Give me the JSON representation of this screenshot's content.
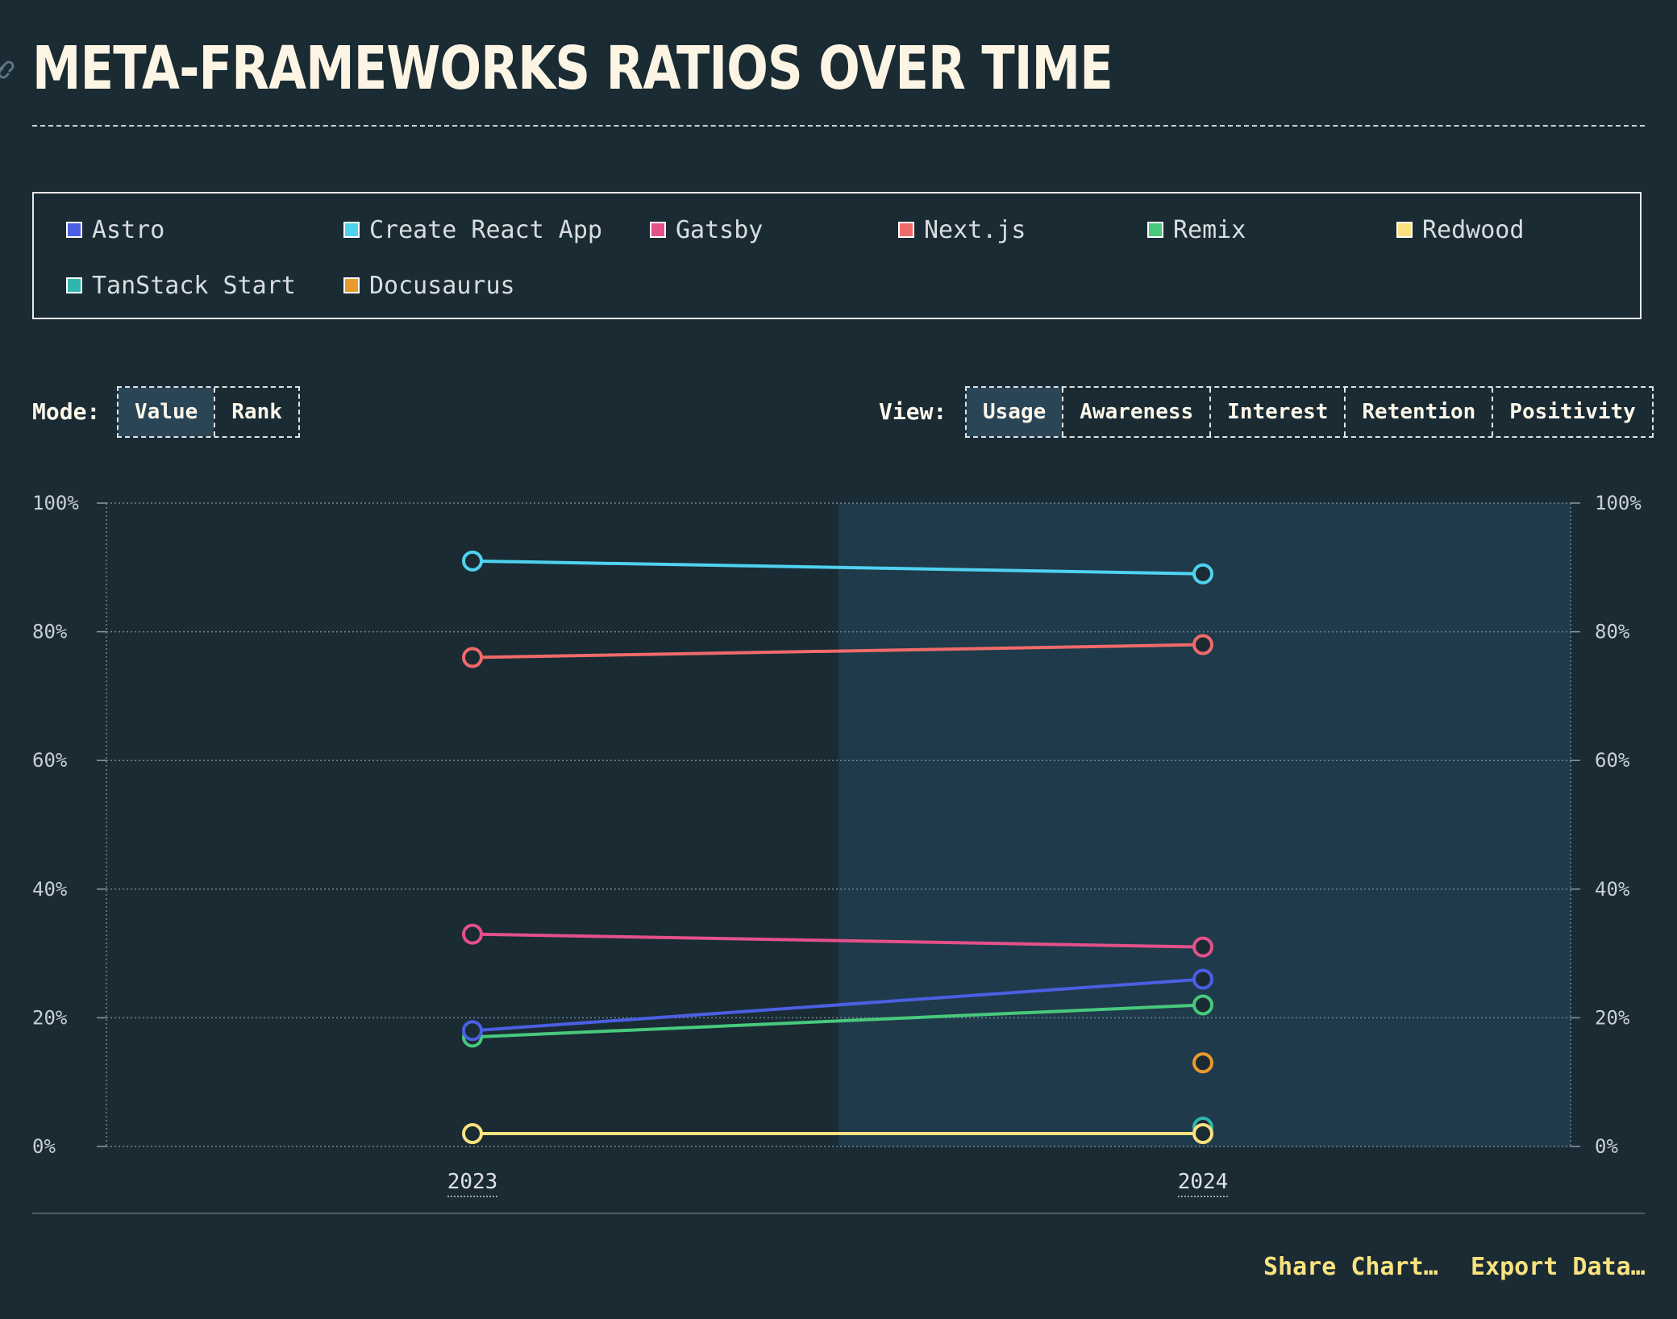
{
  "header": {
    "title": "META-FRAMEWORKS RATIOS OVER TIME",
    "link_icon": "link-icon"
  },
  "legend": [
    {
      "label": "Astro",
      "color": "#4b5fe3"
    },
    {
      "label": "Create React App",
      "color": "#4fd2f0"
    },
    {
      "label": "Gatsby",
      "color": "#e3508a"
    },
    {
      "label": "Next.js",
      "color": "#f06a6a"
    },
    {
      "label": "Remix",
      "color": "#48c97c"
    },
    {
      "label": "Redwood",
      "color": "#f9e27f"
    },
    {
      "label": "TanStack Start",
      "color": "#2fb6ad"
    },
    {
      "label": "Docusaurus",
      "color": "#e99a2c"
    }
  ],
  "controls": {
    "mode_label": "Mode:",
    "mode_options": [
      "Value",
      "Rank"
    ],
    "mode_selected": "Value",
    "view_label": "View:",
    "view_options": [
      "Usage",
      "Awareness",
      "Interest",
      "Retention",
      "Positivity"
    ],
    "view_selected": "Usage"
  },
  "chart_data": {
    "type": "line",
    "title": "META-FRAMEWORKS RATIOS OVER TIME",
    "x": [
      "2023",
      "2024"
    ],
    "ylim": [
      0,
      100
    ],
    "y_ticks": [
      "0%",
      "20%",
      "40%",
      "60%",
      "80%",
      "100%"
    ],
    "y_axis_both_sides": true,
    "highlighted_year": "2024",
    "grid": true,
    "legend_position": "top",
    "series": [
      {
        "name": "Create React App",
        "color": "#4fd2f0",
        "values": [
          91,
          89
        ]
      },
      {
        "name": "Next.js",
        "color": "#f06a6a",
        "values": [
          76,
          78
        ]
      },
      {
        "name": "Gatsby",
        "color": "#e3508a",
        "values": [
          33,
          31
        ]
      },
      {
        "name": "Astro",
        "color": "#4b5fe3",
        "values": [
          18,
          26
        ]
      },
      {
        "name": "Remix",
        "color": "#48c97c",
        "values": [
          17,
          22
        ]
      },
      {
        "name": "Redwood",
        "color": "#f9e27f",
        "values": [
          2,
          2
        ]
      },
      {
        "name": "Docusaurus",
        "color": "#e99a2c",
        "values": [
          null,
          13
        ]
      },
      {
        "name": "TanStack Start",
        "color": "#2fb6ad",
        "values": [
          null,
          3
        ]
      }
    ]
  },
  "actions": {
    "share": "Share Chart…",
    "export": "Export Data…"
  }
}
